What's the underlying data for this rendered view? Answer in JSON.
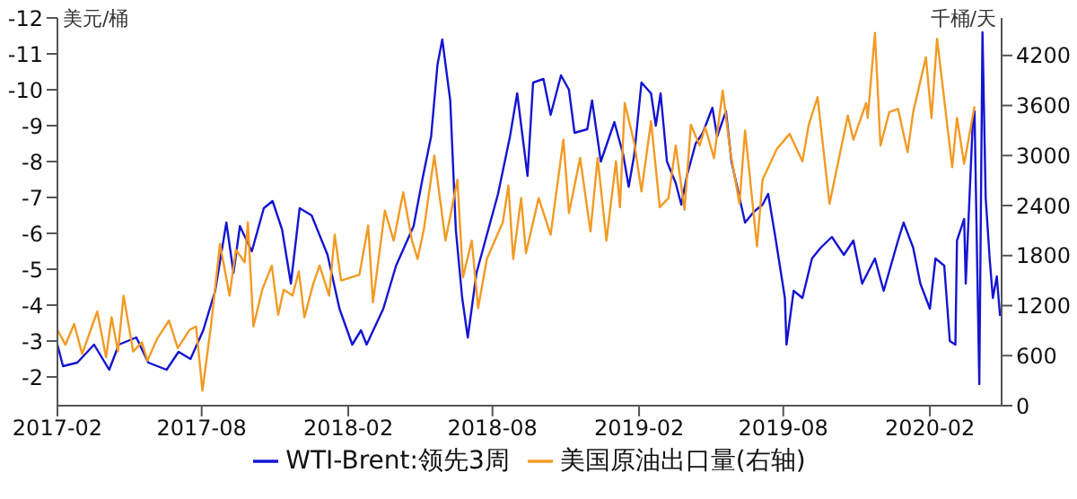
{
  "chart_data": {
    "type": "line",
    "ylabel": "美元/桶",
    "y2label": "千桶/天",
    "ylim": [
      -1.2,
      -12
    ],
    "yticks": [
      -12,
      -11,
      -10,
      -9,
      -8,
      -7,
      -6,
      -5,
      -4,
      -3,
      -2
    ],
    "y2lim": [
      0,
      4650
    ],
    "y2ticks": [
      0,
      600,
      1200,
      1800,
      2400,
      3000,
      3600,
      4200
    ],
    "xlim": [
      "2017-02",
      "2020-05"
    ],
    "xticks": [
      "2017-02",
      "2017-08",
      "2018-02",
      "2018-08",
      "2019-02",
      "2019-08",
      "2020-02"
    ],
    "grid": false,
    "legend": "bottom",
    "series": [
      {
        "name": "WTI-Brent:领先3周",
        "color": "#1414d2",
        "x": [
          "2017-02-01",
          "2017-02-08",
          "2017-02-26",
          "2017-03-19",
          "2017-04-07",
          "2017-04-19",
          "2017-05-11",
          "2017-05-26",
          "2017-06-18",
          "2017-07-03",
          "2017-07-18",
          "2017-08-03",
          "2017-08-18",
          "2017-09-01",
          "2017-09-10",
          "2017-09-18",
          "2017-10-03",
          "2017-10-18",
          "2017-10-29",
          "2017-11-10",
          "2017-11-21",
          "2017-12-02",
          "2017-12-17",
          "2018-01-06",
          "2018-01-21",
          "2018-02-06",
          "2018-02-17",
          "2018-02-24",
          "2018-03-17",
          "2018-04-02",
          "2018-04-24",
          "2018-05-05",
          "2018-05-16",
          "2018-05-24",
          "2018-05-30",
          "2018-06-09",
          "2018-06-16",
          "2018-06-24",
          "2018-07-01",
          "2018-07-12",
          "2018-07-23",
          "2018-08-08",
          "2018-08-23",
          "2018-09-01",
          "2018-09-14",
          "2018-09-21",
          "2018-10-04",
          "2018-10-13",
          "2018-10-26",
          "2018-11-05",
          "2018-11-12",
          "2018-11-28",
          "2018-12-04",
          "2018-12-15",
          "2019-01-01",
          "2019-01-12",
          "2019-01-19",
          "2019-01-26",
          "2019-02-04",
          "2019-02-16",
          "2019-02-22",
          "2019-02-28",
          "2019-03-08",
          "2019-03-19",
          "2019-03-26",
          "2019-04-02",
          "2019-04-13",
          "2019-04-22",
          "2019-05-04",
          "2019-05-10",
          "2019-05-21",
          "2019-05-28",
          "2019-06-07",
          "2019-06-14",
          "2019-06-25",
          "2019-07-06",
          "2019-07-13",
          "2019-07-22",
          "2019-08-03",
          "2019-08-05",
          "2019-08-14",
          "2019-08-25",
          "2019-09-06",
          "2019-09-17",
          "2019-10-01",
          "2019-10-16",
          "2019-10-28",
          "2019-11-08",
          "2019-11-24",
          "2019-12-05",
          "2019-12-23",
          "2019-12-30",
          "2020-01-11",
          "2020-01-20",
          "2020-02-01",
          "2020-02-08",
          "2020-02-19",
          "2020-02-26",
          "2020-03-04",
          "2020-03-06",
          "2020-03-15",
          "2020-03-17",
          "2020-03-26",
          "2020-03-28",
          "2020-04-03",
          "2020-04-07",
          "2020-04-11",
          "2020-04-16",
          "2020-04-20",
          "2020-04-25",
          "2020-04-29"
        ],
        "values": [
          -2.9,
          -2.3,
          -2.4,
          -2.9,
          -2.2,
          -2.9,
          -3.1,
          -2.4,
          -2.2,
          -2.7,
          -2.5,
          -3.3,
          -4.4,
          -6.3,
          -4.9,
          -6.2,
          -5.5,
          -6.7,
          -6.9,
          -6.1,
          -4.6,
          -6.7,
          -6.5,
          -5.4,
          -3.9,
          -2.9,
          -3.3,
          -2.9,
          -3.9,
          -5.1,
          -6.2,
          -7.5,
          -8.7,
          -10.7,
          -11.4,
          -9.7,
          -6.1,
          -4.2,
          -3.1,
          -4.9,
          -5.8,
          -7.1,
          -8.7,
          -9.9,
          -7.6,
          -10.2,
          -10.3,
          -9.3,
          -10.4,
          -10.0,
          -8.8,
          -8.9,
          -9.7,
          -8.0,
          -9.1,
          -8.2,
          -7.3,
          -8.2,
          -10.2,
          -9.9,
          -9.0,
          -9.9,
          -8.0,
          -7.4,
          -6.8,
          -7.6,
          -8.5,
          -8.8,
          -9.5,
          -8.7,
          -9.4,
          -8.0,
          -7.0,
          -6.3,
          -6.6,
          -6.8,
          -7.1,
          -5.9,
          -4.2,
          -2.9,
          -4.4,
          -4.2,
          -5.3,
          -5.6,
          -5.9,
          -5.4,
          -5.8,
          -4.6,
          -5.3,
          -4.4,
          -5.8,
          -6.3,
          -5.6,
          -4.6,
          -3.9,
          -5.3,
          -5.1,
          -3.0,
          -2.9,
          -5.8,
          -6.4,
          -4.6,
          -9.2,
          -9.4,
          -1.8,
          -11.6,
          -7.0,
          -5.3,
          -4.2,
          -4.8,
          -3.7
        ]
      },
      {
        "name": "美国原油出口量(右轴)",
        "color": "#f39a24",
        "axis": "y2",
        "x": [
          "2017-02-01",
          "2017-02-11",
          "2017-02-22",
          "2017-03-04",
          "2017-03-23",
          "2017-04-03",
          "2017-04-10",
          "2017-04-18",
          "2017-04-25",
          "2017-05-07",
          "2017-05-18",
          "2017-05-25",
          "2017-06-06",
          "2017-06-21",
          "2017-07-02",
          "2017-07-17",
          "2017-07-25",
          "2017-08-02",
          "2017-08-13",
          "2017-08-24",
          "2017-09-05",
          "2017-09-13",
          "2017-09-24",
          "2017-09-28",
          "2017-10-05",
          "2017-10-16",
          "2017-10-28",
          "2017-11-05",
          "2017-11-12",
          "2017-11-23",
          "2017-12-01",
          "2017-12-08",
          "2017-12-19",
          "2017-12-27",
          "2018-01-08",
          "2018-01-15",
          "2018-01-23",
          "2018-02-15",
          "2018-02-26",
          "2018-03-04",
          "2018-03-19",
          "2018-03-30",
          "2018-04-11",
          "2018-04-22",
          "2018-04-29",
          "2018-05-07",
          "2018-05-20",
          "2018-06-03",
          "2018-06-18",
          "2018-06-25",
          "2018-07-06",
          "2018-07-14",
          "2018-07-25",
          "2018-08-14",
          "2018-08-21",
          "2018-08-27",
          "2018-09-06",
          "2018-09-12",
          "2018-09-28",
          "2018-10-13",
          "2018-10-29",
          "2018-11-05",
          "2018-11-19",
          "2018-12-02",
          "2018-12-11",
          "2018-12-22",
          "2019-01-03",
          "2019-01-08",
          "2019-01-14",
          "2019-01-26",
          "2019-02-04",
          "2019-02-16",
          "2019-02-27",
          "2019-03-10",
          "2019-03-19",
          "2019-03-30",
          "2019-04-07",
          "2019-04-18",
          "2019-04-25",
          "2019-05-06",
          "2019-05-17",
          "2019-05-26",
          "2019-06-07",
          "2019-06-14",
          "2019-06-29",
          "2019-07-06",
          "2019-07-24",
          "2019-08-09",
          "2019-08-25",
          "2019-09-02",
          "2019-09-13",
          "2019-09-28",
          "2019-10-21",
          "2019-10-28",
          "2019-11-13",
          "2019-11-15",
          "2019-11-24",
          "2019-12-01",
          "2019-12-12",
          "2019-12-23",
          "2020-01-04",
          "2020-01-11",
          "2020-01-27",
          "2020-02-03",
          "2020-02-10",
          "2020-02-29",
          "2020-03-06",
          "2020-03-15",
          "2020-03-28"
        ],
        "values": [
          910,
          730,
          980,
          620,
          1130,
          580,
          1060,
          650,
          1320,
          650,
          760,
          540,
          800,
          1020,
          690,
          910,
          950,
          180,
          980,
          1940,
          1320,
          1870,
          1720,
          2200,
          950,
          1390,
          1680,
          1090,
          1390,
          1320,
          1610,
          1060,
          1460,
          1680,
          1320,
          2050,
          1500,
          1570,
          2160,
          1240,
          2340,
          1980,
          2560,
          1980,
          1760,
          2120,
          3000,
          1980,
          2710,
          1540,
          1980,
          1170,
          1760,
          2200,
          2640,
          1760,
          2490,
          1830,
          2490,
          2050,
          3190,
          2310,
          2970,
          2090,
          2970,
          1980,
          2930,
          2380,
          3630,
          3150,
          2570,
          3410,
          2380,
          2490,
          3120,
          2350,
          3370,
          3120,
          3340,
          2970,
          3780,
          3080,
          2420,
          3300,
          1910,
          2710,
          3080,
          3260,
          2930,
          3370,
          3700,
          2420,
          3480,
          3190,
          3630,
          3450,
          4470,
          3120,
          3520,
          3560,
          3040,
          3520,
          4180,
          3450,
          4400,
          2860,
          3450,
          2900,
          3590
        ]
      }
    ]
  }
}
